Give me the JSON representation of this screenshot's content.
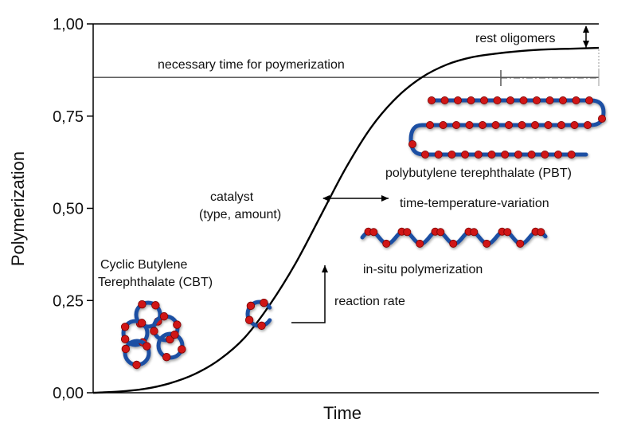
{
  "chart_data": {
    "type": "line",
    "xlabel": "Time",
    "ylabel": "Polymerization",
    "ylim": [
      0,
      1
    ],
    "yticks": [
      0,
      0.25,
      0.5,
      0.75,
      1
    ],
    "ytick_labels": [
      "0,00",
      "0,25",
      "0,50",
      "0,75",
      "1,00"
    ],
    "x_ticks_shown": false,
    "series": [
      {
        "curve": "sigmoid",
        "x": [
          0,
          0.05,
          0.1,
          0.15,
          0.2,
          0.25,
          0.3,
          0.35,
          0.4,
          0.45,
          0.5,
          0.55,
          0.6,
          0.65,
          0.7,
          0.75,
          0.8,
          0.85,
          0.9,
          0.95,
          1
        ],
        "values": [
          0,
          0.003,
          0.01,
          0.025,
          0.05,
          0.09,
          0.15,
          0.24,
          0.35,
          0.48,
          0.61,
          0.72,
          0.8,
          0.855,
          0.89,
          0.91,
          0.92,
          0.927,
          0.931,
          0.933,
          0.935
        ]
      }
    ],
    "reference_lines": [
      {
        "y": 1.0,
        "label": ""
      },
      {
        "y": 0.855,
        "label": "necessary time for poymerization"
      }
    ],
    "annotations": {
      "rest_oligomers": "rest oligomers",
      "pbt": "polybutylene terephthalate (PBT)",
      "catalyst_line1": "catalyst",
      "catalyst_line2": "(type, amount)",
      "time_temp": "time-temperature-variation",
      "insitu": "in-situ polymerization",
      "cbt_line1": "Cyclic Butylene",
      "cbt_line2": "Terephthalate (CBT)",
      "reaction_rate": "reaction rate"
    }
  },
  "colors": {
    "chain": "#1f4fa3",
    "bead": "#d01818",
    "axis": "#000000"
  }
}
